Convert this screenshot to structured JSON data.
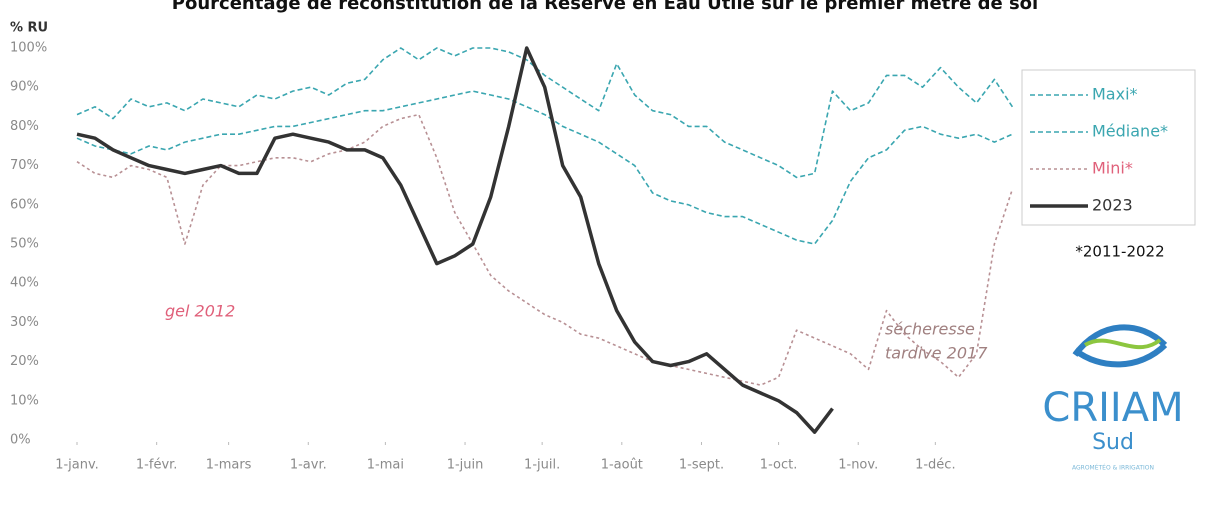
{
  "chart_data": {
    "type": "line",
    "title": "Pourcentage de reconstitution de la Réserve en Eau Utile sur le premier mètre de sol",
    "ylabel": "% RU",
    "x": [
      0,
      7,
      14,
      21,
      28,
      35,
      42,
      49,
      56,
      63,
      70,
      77,
      84,
      91,
      98,
      105,
      112,
      119,
      126,
      133,
      140,
      147,
      154,
      161,
      168,
      175,
      182,
      189,
      196,
      203,
      210,
      217,
      224,
      231,
      238,
      245,
      252,
      259,
      266,
      273,
      280,
      287,
      294,
      301,
      308,
      315,
      322,
      329,
      336,
      343,
      350,
      357,
      364
    ],
    "xlim": [
      0,
      365
    ],
    "xticks": [
      {
        "value": 0,
        "label": "1-janv."
      },
      {
        "value": 31,
        "label": "1-févr."
      },
      {
        "value": 59,
        "label": "1-mars"
      },
      {
        "value": 90,
        "label": "1-avr."
      },
      {
        "value": 120,
        "label": "1-mai"
      },
      {
        "value": 151,
        "label": "1-juin"
      },
      {
        "value": 181,
        "label": "1-juil."
      },
      {
        "value": 212,
        "label": "1-août"
      },
      {
        "value": 243,
        "label": "1-sept."
      },
      {
        "value": 273,
        "label": "1-oct."
      },
      {
        "value": 304,
        "label": "1-nov."
      },
      {
        "value": 334,
        "label": "1-déc."
      }
    ],
    "ylim": [
      0,
      100
    ],
    "yticks": [
      {
        "value": 0,
        "label": "0%"
      },
      {
        "value": 10,
        "label": "10%"
      },
      {
        "value": 20,
        "label": "20%"
      },
      {
        "value": 30,
        "label": "30%"
      },
      {
        "value": 40,
        "label": "40%"
      },
      {
        "value": 50,
        "label": "50%"
      },
      {
        "value": 60,
        "label": "60%"
      },
      {
        "value": 70,
        "label": "70%"
      },
      {
        "value": 80,
        "label": "80%"
      },
      {
        "value": 90,
        "label": "90%"
      },
      {
        "value": 100,
        "label": "100%"
      }
    ],
    "grid": false,
    "legend": "right",
    "series": [
      {
        "name": "Maxi*",
        "color": "#3aa6b0",
        "style": "dashed",
        "values": [
          83,
          85,
          82,
          87,
          85,
          86,
          84,
          87,
          86,
          85,
          88,
          87,
          89,
          90,
          88,
          91,
          92,
          97,
          100,
          97,
          100,
          98,
          100,
          100,
          99,
          97,
          93,
          90,
          87,
          84,
          96,
          88,
          84,
          83,
          80,
          80,
          76,
          74,
          72,
          70,
          67,
          68,
          89,
          84,
          86,
          93,
          93,
          90,
          95,
          90,
          86,
          92,
          85
        ]
      },
      {
        "name": "Médiane*",
        "color": "#3aa6b0",
        "style": "dashed",
        "values": [
          77,
          75,
          74,
          73,
          75,
          74,
          76,
          77,
          78,
          78,
          79,
          80,
          80,
          81,
          82,
          83,
          84,
          84,
          85,
          86,
          87,
          88,
          89,
          88,
          87,
          85,
          83,
          80,
          78,
          76,
          73,
          70,
          63,
          61,
          60,
          58,
          57,
          57,
          55,
          53,
          51,
          50,
          56,
          66,
          72,
          74,
          79,
          80,
          78,
          77,
          78,
          76,
          78
        ]
      },
      {
        "name": "Mini*",
        "color": "#b89094",
        "style": "dotted",
        "text_color": "#e0607a",
        "values": [
          71,
          68,
          67,
          70,
          69,
          67,
          50,
          65,
          70,
          70,
          71,
          72,
          72,
          71,
          73,
          74,
          76,
          80,
          82,
          83,
          72,
          58,
          50,
          42,
          38,
          35,
          32,
          30,
          27,
          26,
          24,
          22,
          20,
          19,
          18,
          17,
          16,
          15,
          14,
          16,
          28,
          26,
          24,
          22,
          18,
          33,
          27,
          23,
          20,
          16,
          22,
          50,
          64
        ]
      },
      {
        "name": "2023",
        "color": "#333333",
        "style": "solid",
        "values": [
          78,
          77,
          74,
          72,
          70,
          69,
          68,
          69,
          70,
          68,
          68,
          77,
          78,
          77,
          76,
          74,
          74,
          72,
          65,
          55,
          45,
          47,
          50,
          62,
          80,
          100,
          90,
          70,
          62,
          45,
          33,
          25,
          20,
          19,
          20,
          22,
          18,
          14,
          12,
          10,
          7,
          2,
          8,
          null,
          null,
          null,
          null,
          null,
          null,
          null,
          null,
          null,
          null
        ]
      }
    ],
    "annotations": [
      {
        "text": [
          "gel 2012"
        ],
        "color": "#e0607a"
      },
      {
        "text": [
          "sécheresse",
          "tardive 2017"
        ],
        "color": "#a08080"
      }
    ],
    "note": "*2011-2022",
    "logo": {
      "name": "CRIIAM",
      "sub": "Sud",
      "tagline": "AGROMÉTÉO & IRRIGATION"
    }
  }
}
